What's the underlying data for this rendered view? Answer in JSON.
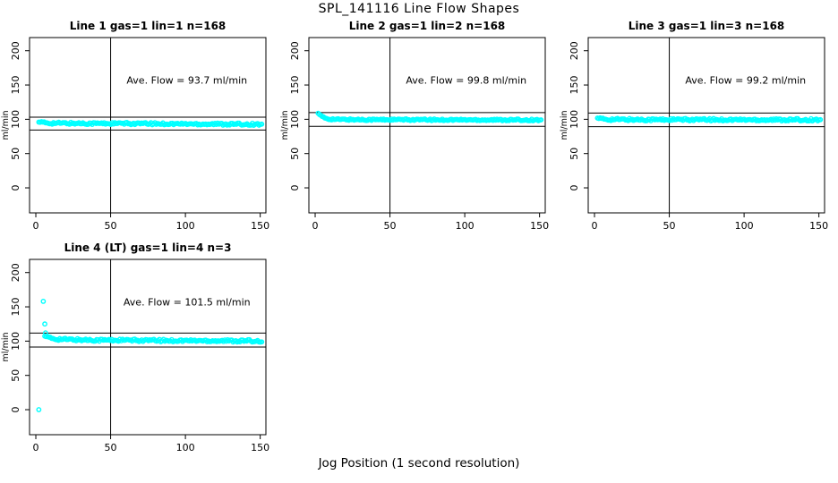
{
  "title": "SPL_141116  Line Flow Shapes",
  "xlabel": "Jog Position (1 second resolution)",
  "point_color": "#00ffff",
  "line_color": "#000000",
  "chart_data": [
    {
      "type": "scatter",
      "panel": 1,
      "title": "Line 1 gas=1 lin=1 n=168",
      "annotation": "Ave. Flow =  93.7  ml/min",
      "ave_flow_ml_min": 93.7,
      "n": 168,
      "ylabel": "ml/min",
      "xlim": [
        -4.2,
        153.8
      ],
      "ylim": [
        -36.5,
        219.2
      ],
      "x_ticks": [
        0,
        50,
        100,
        150
      ],
      "y_ticks": [
        0,
        50,
        100,
        150,
        200
      ],
      "vline_x": 50,
      "hlines": [
        103.1,
        84.3
      ],
      "annotation_xy": [
        101,
        152
      ],
      "band": {
        "x_start": 2,
        "x_end": 151,
        "count": 168,
        "jitter": 1.6,
        "profile": [
          [
            2,
            97.5
          ],
          [
            3,
            96
          ],
          [
            5,
            95
          ],
          [
            9,
            94.5
          ],
          [
            20,
            94.2
          ],
          [
            60,
            93.8
          ],
          [
            100,
            93.3
          ],
          [
            130,
            93
          ],
          [
            151,
            92.7
          ]
        ]
      },
      "outliers": []
    },
    {
      "type": "scatter",
      "panel": 2,
      "title": "Line 2 gas=1 lin=2 n=168",
      "annotation": "Ave. Flow =  99.8  ml/min",
      "ave_flow_ml_min": 99.8,
      "n": 168,
      "ylabel": "ml/min",
      "xlim": [
        -4.2,
        153.8
      ],
      "ylim": [
        -36.5,
        219.2
      ],
      "x_ticks": [
        0,
        50,
        100,
        150
      ],
      "y_ticks": [
        0,
        50,
        100,
        150,
        200
      ],
      "vline_x": 50,
      "hlines": [
        109.8,
        89.8
      ],
      "annotation_xy": [
        101,
        152
      ],
      "band": {
        "x_start": 2,
        "x_end": 151,
        "count": 168,
        "jitter": 1.2,
        "profile": [
          [
            2,
            110
          ],
          [
            3,
            107
          ],
          [
            4,
            104.5
          ],
          [
            6,
            102
          ],
          [
            9,
            100.5
          ],
          [
            15,
            99.8
          ],
          [
            30,
            99.5
          ],
          [
            80,
            99.3
          ],
          [
            151,
            99
          ]
        ]
      },
      "outliers": []
    },
    {
      "type": "scatter",
      "panel": 3,
      "title": "Line 3 gas=1 lin=3 n=168",
      "annotation": "Ave. Flow =  99.2  ml/min",
      "ave_flow_ml_min": 99.2,
      "n": 168,
      "ylabel": "ml/min",
      "xlim": [
        -4.2,
        153.8
      ],
      "ylim": [
        -36.5,
        219.2
      ],
      "x_ticks": [
        0,
        50,
        100,
        150
      ],
      "y_ticks": [
        0,
        50,
        100,
        150,
        200
      ],
      "vline_x": 50,
      "hlines": [
        109.1,
        89.3
      ],
      "annotation_xy": [
        101,
        152
      ],
      "band": {
        "x_start": 2,
        "x_end": 151,
        "count": 168,
        "jitter": 1.7,
        "profile": [
          [
            2,
            103.5
          ],
          [
            3,
            101.5
          ],
          [
            5,
            100.3
          ],
          [
            9,
            99.8
          ],
          [
            30,
            99.5
          ],
          [
            151,
            99.2
          ]
        ]
      },
      "outliers": []
    },
    {
      "type": "scatter",
      "panel": 4,
      "title": "Line 4 (LT) gas=1 lin=4 n=3",
      "annotation": "Ave. Flow =  101.5  ml/min",
      "ave_flow_ml_min": 101.5,
      "n": 3,
      "ylabel": "ml/min",
      "xlim": [
        -4.2,
        153.8
      ],
      "ylim": [
        -36.5,
        219.2
      ],
      "x_ticks": [
        0,
        50,
        100,
        150
      ],
      "y_ticks": [
        0,
        50,
        100,
        150,
        200
      ],
      "vline_x": 50,
      "hlines": [
        111.7,
        91.4
      ],
      "annotation_xy": [
        101,
        152
      ],
      "band": {
        "x_start": 6,
        "x_end": 151,
        "count": 160,
        "jitter": 1.8,
        "profile": [
          [
            6,
            109
          ],
          [
            7,
            107
          ],
          [
            8,
            105.5
          ],
          [
            10,
            104
          ],
          [
            14,
            103
          ],
          [
            22,
            102.3
          ],
          [
            35,
            101.7
          ],
          [
            60,
            101.2
          ],
          [
            90,
            100.8
          ],
          [
            120,
            100.6
          ],
          [
            151,
            100.2
          ]
        ]
      },
      "outliers": [
        [
          2,
          0
        ],
        [
          5,
          158
        ],
        [
          6,
          125
        ],
        [
          6.5,
          112
        ]
      ]
    }
  ]
}
